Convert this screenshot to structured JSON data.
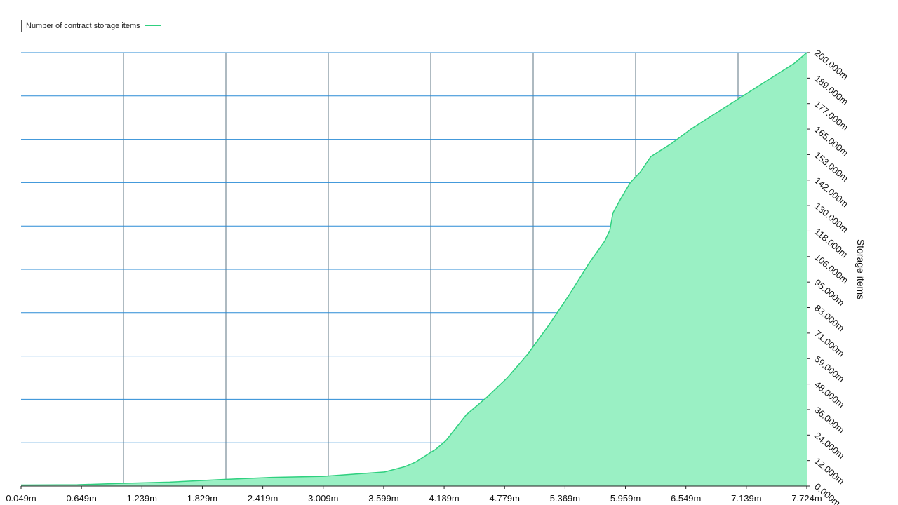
{
  "chart_data": {
    "type": "area",
    "title": "",
    "xlabel": "",
    "ylabel": "Storage items",
    "grid": true,
    "legend_position": "top",
    "series": [
      {
        "name": "Number of contract storage items",
        "color": "#2fd07f",
        "fill": "#9af0c4",
        "x": [
          0.049,
          0.6,
          1.0,
          1.5,
          2.0,
          2.5,
          3.0,
          3.3,
          3.6,
          3.8,
          3.9,
          4.0,
          4.1,
          4.2,
          4.3,
          4.4,
          4.6,
          4.8,
          5.0,
          5.2,
          5.4,
          5.6,
          5.75,
          5.8,
          5.83,
          5.9,
          6.0,
          6.1,
          6.2,
          6.4,
          6.6,
          6.8,
          7.0,
          7.2,
          7.4,
          7.6,
          7.724
        ],
        "y": [
          0.5,
          0.6,
          1.2,
          1.8,
          3.0,
          4.0,
          4.5,
          5.5,
          6.5,
          9,
          11,
          14,
          17,
          21,
          27,
          33,
          41,
          50,
          61,
          74,
          88,
          103,
          113,
          118,
          126,
          132,
          140,
          145,
          152,
          158,
          165,
          171,
          177,
          183,
          189,
          195,
          200
        ]
      }
    ],
    "x_ticks": [
      "0.049m",
      "0.649m",
      "1.239m",
      "1.829m",
      "2.419m",
      "3.009m",
      "3.599m",
      "4.189m",
      "4.779m",
      "5.369m",
      "5.959m",
      "6.549m",
      "7.139m",
      "7.724m"
    ],
    "y_ticks": [
      "0.000m",
      "12.000m",
      "24.000m",
      "36.000m",
      "48.000m",
      "59.000m",
      "71.000m",
      "83.000m",
      "95.000m",
      "106.000m",
      "118.000m",
      "130.000m",
      "142.000m",
      "153.000m",
      "165.000m",
      "177.000m",
      "189.000m",
      "200.000m"
    ],
    "xlim": [
      0.049,
      7.724
    ],
    "ylim": [
      0,
      200
    ],
    "units": "millions"
  }
}
